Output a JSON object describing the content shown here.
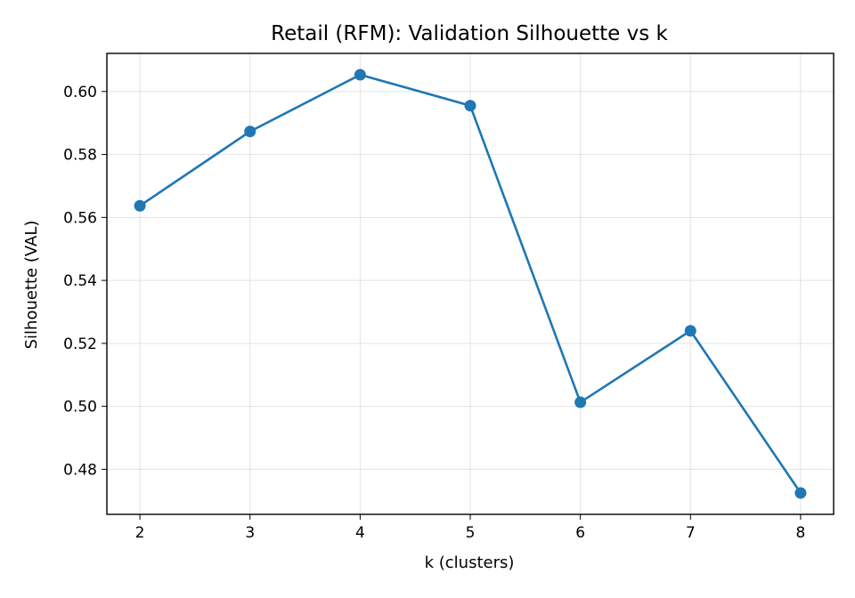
{
  "chart_data": {
    "type": "line",
    "title": "Retail (RFM): Validation Silhouette vs k",
    "xlabel": "k (clusters)",
    "ylabel": "Silhouette (VAL)",
    "x": [
      2,
      3,
      4,
      5,
      6,
      7,
      8
    ],
    "series": [
      {
        "values": [
          0.5637,
          0.5873,
          0.6053,
          0.5955,
          0.5013,
          0.524,
          0.4725
        ],
        "color": "#1f77b4",
        "marker": "circle"
      }
    ],
    "xlim": [
      1.7,
      8.3
    ],
    "ylim": [
      0.4657,
      0.6121
    ],
    "xticks": [
      2,
      3,
      4,
      5,
      6,
      7,
      8
    ],
    "xtick_labels": [
      "2",
      "3",
      "4",
      "5",
      "6",
      "7",
      "8"
    ],
    "yticks": [
      0.48,
      0.5,
      0.52,
      0.54,
      0.56,
      0.58,
      0.6
    ],
    "ytick_labels": [
      "0.48",
      "0.50",
      "0.52",
      "0.54",
      "0.56",
      "0.58",
      "0.60"
    ],
    "grid": true
  }
}
